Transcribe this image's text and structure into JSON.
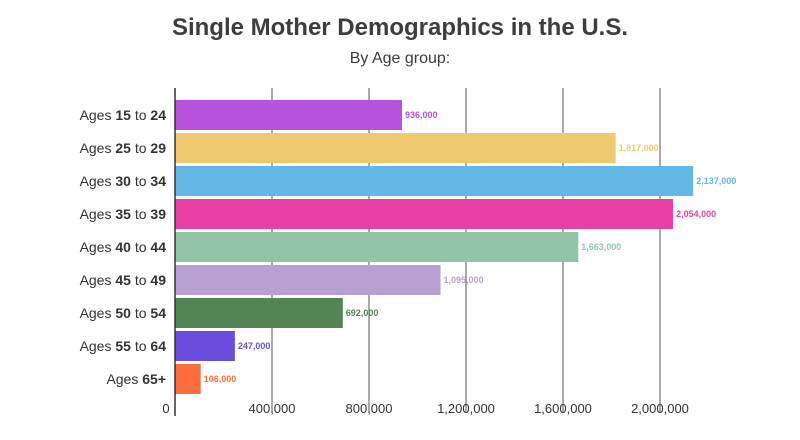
{
  "chart_data": {
    "type": "bar",
    "orientation": "horizontal",
    "title": "Single Mother Demographics in the U.S.",
    "subtitle": "By Age group:",
    "categories": [
      {
        "pre": "Ages ",
        "a": "15",
        "mid": " to ",
        "b": "24"
      },
      {
        "pre": "Ages ",
        "a": "25",
        "mid": " to ",
        "b": "29"
      },
      {
        "pre": "Ages ",
        "a": "30",
        "mid": " to ",
        "b": "34"
      },
      {
        "pre": "Ages ",
        "a": "35",
        "mid": " to ",
        "b": "39"
      },
      {
        "pre": "Ages ",
        "a": "40",
        "mid": " to ",
        "b": "44"
      },
      {
        "pre": "Ages ",
        "a": "45",
        "mid": " to ",
        "b": "49"
      },
      {
        "pre": "Ages ",
        "a": "50",
        "mid": " to ",
        "b": "54"
      },
      {
        "pre": "Ages ",
        "a": "55",
        "mid": " to ",
        "b": "64"
      },
      {
        "pre": "Ages ",
        "a": "65+",
        "mid": "",
        "b": ""
      }
    ],
    "values": [
      936000,
      1817000,
      2137000,
      2054000,
      1663000,
      1095000,
      692000,
      247000,
      106000
    ],
    "value_labels": [
      "936,000",
      "1,817,000",
      "2,137,000",
      "2,054,000",
      "1,663,000",
      "1,095,000",
      "692,000",
      "247,000",
      "106,000"
    ],
    "colors": [
      "#b553dd",
      "#efc970",
      "#62b7e4",
      "#e840a4",
      "#94c4a8",
      "#b8a0d2",
      "#548353",
      "#6a4ddc",
      "#fb6d3c"
    ],
    "xticks": [
      0,
      400000,
      800000,
      1200000,
      1600000,
      2000000
    ],
    "xtick_labels": [
      "0",
      "400,000",
      "800,000",
      "1,200,000",
      "1,600,000",
      "2,000,000"
    ],
    "xlim": [
      0,
      2200000
    ],
    "grid": true
  }
}
